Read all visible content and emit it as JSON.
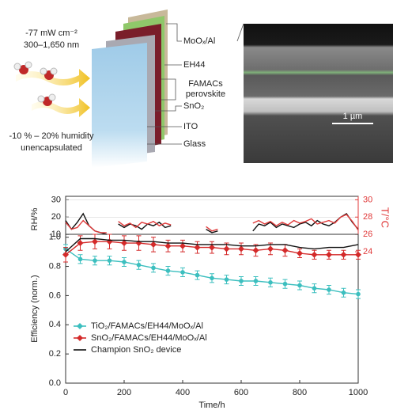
{
  "diagram": {
    "illumination": [
      "-77 mW cm⁻²",
      "300–1,650 nm"
    ],
    "environment": [
      "-10 % – 20% humidity",
      "unencapsulated"
    ],
    "layers": [
      "MoOₓ/Al",
      "EH44",
      "FAMACs",
      "perovskite",
      "SnO₂",
      "ITO",
      "Glass"
    ],
    "scale_bar": "1 µm"
  },
  "chart_data": [
    {
      "type": "line",
      "ylabel": "RH/%",
      "y2label": "T/°C",
      "x": [
        0,
        20,
        40,
        60,
        80,
        100,
        120,
        140,
        160,
        180,
        200,
        220,
        240,
        260,
        280,
        300,
        320,
        340,
        360,
        380,
        400,
        420,
        440,
        460,
        480,
        500,
        520,
        540,
        560,
        580,
        600,
        620,
        640,
        660,
        680,
        700,
        720,
        740,
        760,
        780,
        800,
        820,
        840,
        860,
        880,
        900,
        920,
        940,
        960,
        980,
        1000
      ],
      "xlim": [
        0,
        1000
      ],
      "ylim": [
        0,
        32
      ],
      "yticks": [
        10,
        20,
        30
      ],
      "y2lim": [
        24,
        30.4
      ],
      "y2ticks": [
        24,
        26,
        28,
        30
      ],
      "y2color": "#e03a3a",
      "series": [
        {
          "color": "#111111",
          "values": [
            18,
            13,
            17,
            22,
            15,
            12,
            11,
            10,
            null,
            16,
            14,
            16,
            15,
            13,
            16,
            15,
            17,
            14,
            15,
            null,
            null,
            null,
            null,
            null,
            13,
            11,
            12,
            null,
            null,
            null,
            null,
            null,
            12,
            16,
            15,
            17,
            14,
            16,
            15,
            14,
            16,
            17,
            15,
            18,
            16,
            15,
            17,
            20,
            22,
            17,
            13
          ]
        },
        {
          "color": "#e03a3a",
          "axis": "y2",
          "values": [
            27.4,
            26.6,
            26.8,
            27.6,
            27.0,
            26.4,
            26.2,
            26.2,
            null,
            27.5,
            27.0,
            27.3,
            26.8,
            27.4,
            27.2,
            27.5,
            27.0,
            27.3,
            27.1,
            null,
            null,
            null,
            null,
            null,
            26.9,
            26.4,
            26.6,
            null,
            null,
            null,
            null,
            null,
            27.3,
            27.6,
            27.2,
            27.5,
            27.0,
            27.4,
            27.1,
            27.6,
            27.3,
            27.5,
            27.8,
            27.2,
            27.4,
            27.6,
            27.3,
            28.0,
            28.3,
            27.5,
            26.5
          ]
        }
      ]
    },
    {
      "type": "line",
      "xlabel": "Time/h",
      "ylabel": "Efficiency (norm.)",
      "x": [
        0,
        50,
        100,
        150,
        200,
        250,
        300,
        350,
        400,
        450,
        500,
        550,
        600,
        650,
        700,
        750,
        800,
        850,
        900,
        950,
        1000
      ],
      "xlim": [
        0,
        1000
      ],
      "xticks": [
        0,
        200,
        400,
        600,
        800,
        1000
      ],
      "ylim": [
        0,
        1.02
      ],
      "yticks": [
        {
          "value": 0,
          "label": "0.0"
        },
        0.2,
        0.4,
        0.6,
        0.8,
        {
          "value": 1,
          "label": "1.0"
        }
      ],
      "legend": "lower left",
      "series": [
        {
          "name": "TiO₂/FAMACs/EH44/MoOₓ/Al",
          "color": "#3cbfbf",
          "marker": "circle",
          "values": [
            0.92,
            0.85,
            0.84,
            0.84,
            0.83,
            0.81,
            0.79,
            0.77,
            0.76,
            0.74,
            0.72,
            0.71,
            0.7,
            0.7,
            0.69,
            0.68,
            0.67,
            0.65,
            0.64,
            0.62,
            0.61
          ],
          "errors": [
            0.03,
            0.03,
            0.03,
            0.03,
            0.03,
            0.03,
            0.03,
            0.03,
            0.03,
            0.03,
            0.03,
            0.03,
            0.03,
            0.03,
            0.03,
            0.03,
            0.03,
            0.03,
            0.03,
            0.03,
            0.03
          ]
        },
        {
          "name": "SnO₂/FAMACs/EH44/MoOₓ/Al",
          "color": "#d42a2a",
          "marker": "diamond",
          "values": [
            0.88,
            0.96,
            0.97,
            0.97,
            0.96,
            0.96,
            0.95,
            0.94,
            0.94,
            0.93,
            0.93,
            0.92,
            0.92,
            0.91,
            0.92,
            0.91,
            0.89,
            0.88,
            0.88,
            0.88,
            0.88
          ],
          "errors": [
            0.05,
            0.05,
            0.05,
            0.05,
            0.05,
            0.05,
            0.05,
            0.04,
            0.04,
            0.04,
            0.04,
            0.04,
            0.04,
            0.04,
            0.04,
            0.04,
            0.03,
            0.03,
            0.03,
            0.03,
            0.03
          ]
        },
        {
          "name": "Champion SnO₂ device",
          "color": "#111111",
          "values": [
            0.9,
            0.99,
            0.99,
            0.98,
            0.98,
            0.97,
            0.97,
            0.96,
            0.96,
            0.95,
            0.95,
            0.95,
            0.94,
            0.94,
            0.95,
            0.95,
            0.93,
            0.92,
            0.93,
            0.93,
            0.95
          ]
        }
      ]
    }
  ]
}
